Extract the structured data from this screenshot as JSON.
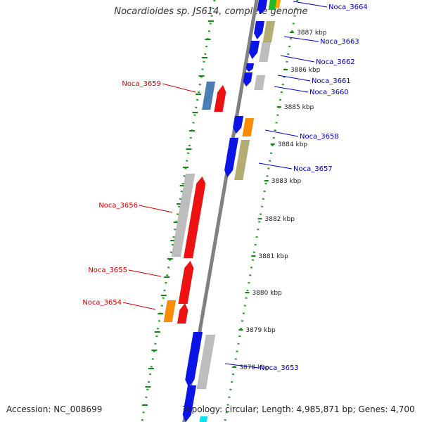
{
  "title": "Nocardioides sp. JS614, complete genome",
  "footer": {
    "accession": "Accession: NC_008699",
    "topology": "Topology: circular; Length: 4,985,871 bp; Genes: 4,700"
  },
  "colors": {
    "axis": "#808080",
    "tick": "#118811",
    "dots": "#2a9a2a",
    "label_plus": "#0000bb",
    "label_minus": "#cc0000",
    "gene_blue": "#0a14e6",
    "gene_red": "#ee1111",
    "gene_gray": "#bdbdbd",
    "gene_olive": "#b5ad73",
    "gene_orange": "#ff8c00",
    "gene_steelblue": "#4a7fb5",
    "gene_cyan": "#00e5ee"
  },
  "scale": {
    "unit": "kbp",
    "ticks": [
      "3878 kbp",
      "3879 kbp",
      "3880 kbp",
      "3881 kbp",
      "3882 kbp",
      "3883 kbp",
      "3884 kbp",
      "3885 kbp",
      "3886 kbp",
      "3887 kbp"
    ]
  },
  "genes": [
    {
      "name": "Noca_3664",
      "strand": "+",
      "color": "gene_blue"
    },
    {
      "name": "Noca_3663",
      "strand": "+",
      "color": "gene_olive"
    },
    {
      "name": "Noca_3662",
      "strand": "+",
      "color": "gene_gray"
    },
    {
      "name": "Noca_3661",
      "strand": "+",
      "color": "gene_blue"
    },
    {
      "name": "Noca_3660",
      "strand": "+",
      "color": "gene_gray"
    },
    {
      "name": "Noca_3659",
      "strand": "-",
      "color": "gene_steelblue"
    },
    {
      "name": "Noca_3658",
      "strand": "+",
      "color": "gene_orange"
    },
    {
      "name": "Noca_3657",
      "strand": "+",
      "color": "gene_olive"
    },
    {
      "name": "Noca_3656",
      "strand": "-",
      "color": "gene_gray"
    },
    {
      "name": "Noca_3655",
      "strand": "-",
      "color": "gene_red"
    },
    {
      "name": "Noca_3654",
      "strand": "-",
      "color": "gene_orange"
    },
    {
      "name": "Noca_3653",
      "strand": "+",
      "color": "gene_gray"
    }
  ]
}
